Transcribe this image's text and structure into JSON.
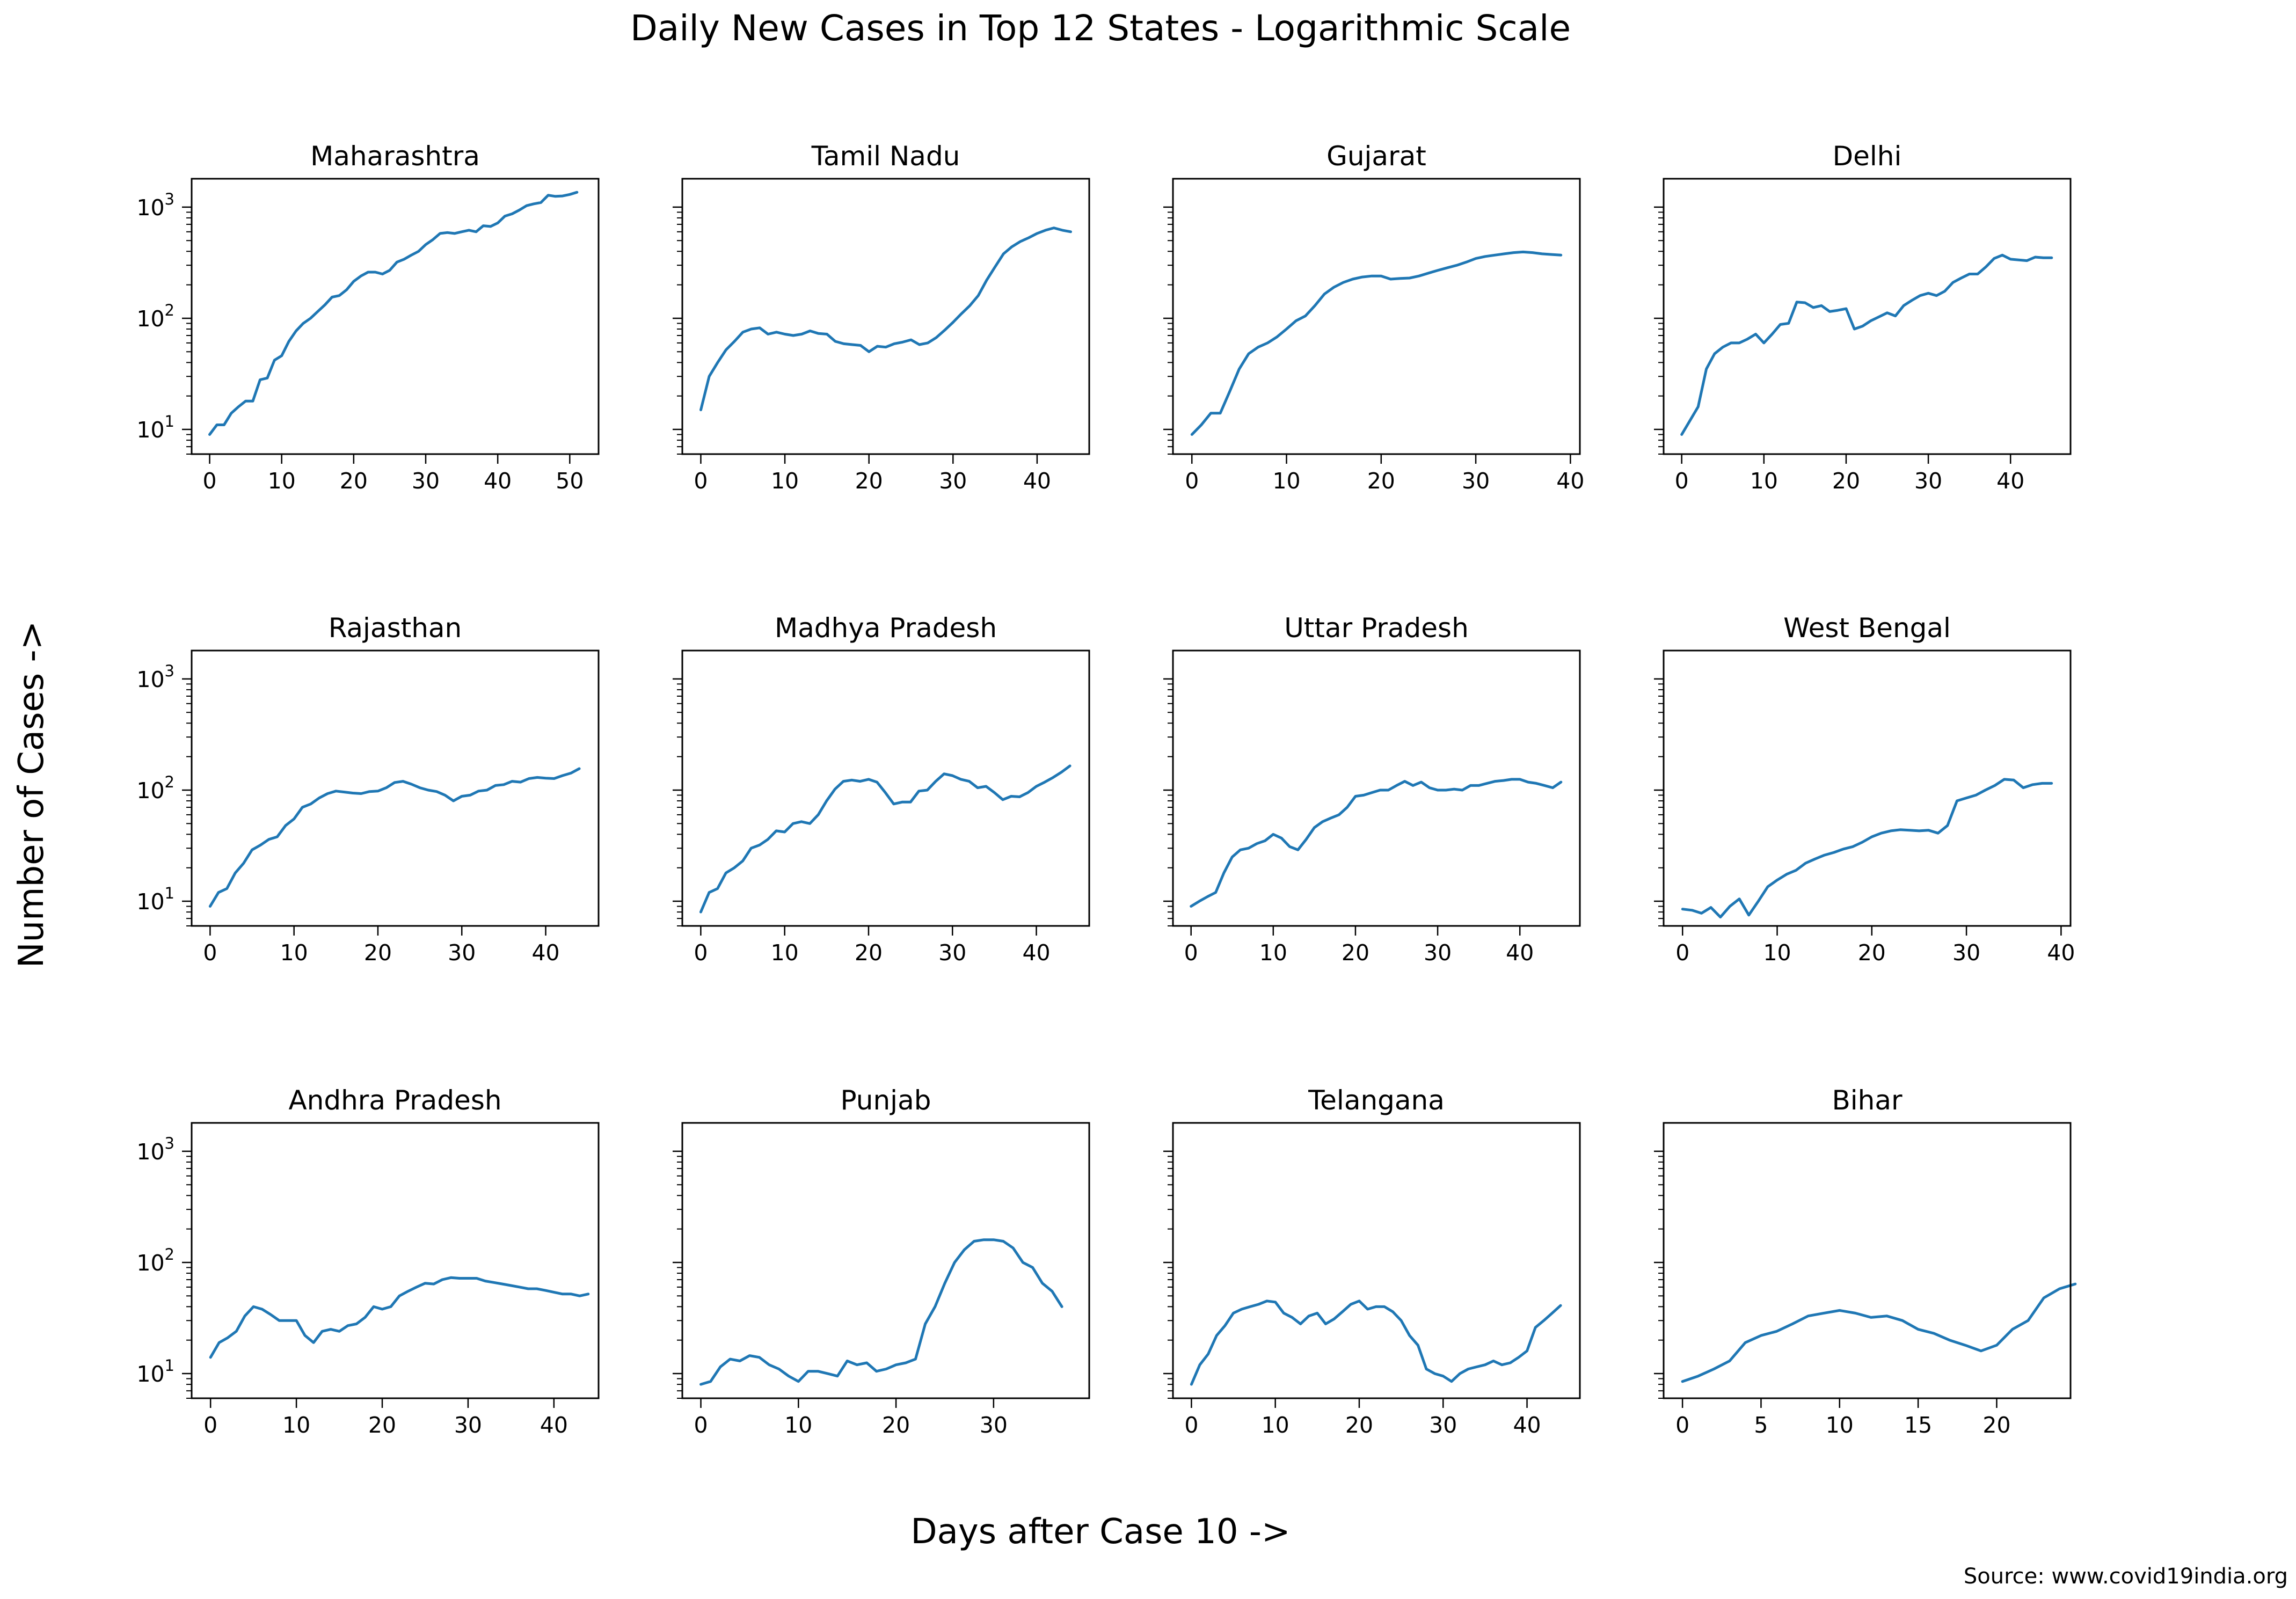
{
  "figure": {
    "title": "Daily New Cases in Top 12 States - Logarithmic Scale",
    "xlabel": "Days after Case 10 ->",
    "ylabel": "Number of Cases ->",
    "source": "Source: www.covid19india.org",
    "line_color": "#1f77b4"
  },
  "chart_data": [
    {
      "type": "line",
      "title": "Maharashtra",
      "yscale": "log",
      "ylim": [
        6,
        1800
      ],
      "xlim": [
        -2.5,
        54
      ],
      "grid": false,
      "xticks": [
        0,
        10,
        20,
        30,
        40,
        50
      ],
      "yticks": [
        {
          "value": 10,
          "base": "10",
          "exp": "1"
        },
        {
          "value": 100,
          "base": "10",
          "exp": "2"
        },
        {
          "value": 1000,
          "base": "10",
          "exp": "3"
        }
      ],
      "series": [
        {
          "values": [
            9,
            11,
            11,
            14,
            16,
            18,
            18,
            28,
            29,
            42,
            46,
            62,
            77,
            90,
            100,
            115,
            132,
            155,
            160,
            180,
            215,
            240,
            260,
            260,
            250,
            270,
            320,
            340,
            370,
            400,
            460,
            510,
            580,
            590,
            580,
            600,
            620,
            600,
            680,
            670,
            720,
            830,
            870,
            940,
            1030,
            1070,
            1100,
            1280,
            1250,
            1260,
            1300,
            1360
          ]
        }
      ]
    },
    {
      "type": "line",
      "title": "Tamil Nadu",
      "yscale": "log",
      "ylim": [
        6,
        1800
      ],
      "xlim": [
        -2.2,
        46.2
      ],
      "grid": false,
      "xticks": [
        0,
        10,
        20,
        30,
        40
      ],
      "yticks": [
        {
          "value": 10,
          "base": "10",
          "exp": "1"
        },
        {
          "value": 100,
          "base": "10",
          "exp": "2"
        },
        {
          "value": 1000,
          "base": "10",
          "exp": "3"
        }
      ],
      "series": [
        {
          "values": [
            15,
            30,
            40,
            52,
            62,
            75,
            80,
            82,
            72,
            75,
            72,
            70,
            72,
            77,
            73,
            72,
            62,
            59,
            58,
            57,
            50,
            56,
            55,
            59,
            61,
            64,
            58,
            60,
            67,
            78,
            92,
            110,
            130,
            160,
            220,
            290,
            380,
            440,
            490,
            530,
            580,
            620,
            650,
            620,
            600
          ]
        }
      ]
    },
    {
      "type": "line",
      "title": "Gujarat",
      "yscale": "log",
      "ylim": [
        6,
        1800
      ],
      "xlim": [
        -2,
        41
      ],
      "grid": false,
      "xticks": [
        0,
        10,
        20,
        30,
        40
      ],
      "yticks": [
        {
          "value": 10,
          "base": "10",
          "exp": "1"
        },
        {
          "value": 100,
          "base": "10",
          "exp": "2"
        },
        {
          "value": 1000,
          "base": "10",
          "exp": "3"
        }
      ],
      "series": [
        {
          "values": [
            9,
            11,
            14,
            14,
            22,
            35,
            48,
            55,
            60,
            68,
            80,
            95,
            105,
            130,
            165,
            190,
            210,
            225,
            235,
            240,
            240,
            225,
            228,
            230,
            240,
            255,
            270,
            285,
            300,
            320,
            345,
            360,
            370,
            380,
            390,
            395,
            390,
            380,
            375,
            370
          ]
        }
      ]
    },
    {
      "type": "line",
      "title": "Delhi",
      "yscale": "log",
      "ylim": [
        6,
        1800
      ],
      "xlim": [
        -2.2,
        47.3
      ],
      "grid": false,
      "xticks": [
        0,
        10,
        20,
        30,
        40
      ],
      "yticks": [
        {
          "value": 10,
          "base": "10",
          "exp": "1"
        },
        {
          "value": 100,
          "base": "10",
          "exp": "2"
        },
        {
          "value": 1000,
          "base": "10",
          "exp": "3"
        }
      ],
      "series": [
        {
          "values": [
            9,
            12,
            16,
            35,
            48,
            55,
            60,
            60,
            65,
            72,
            60,
            72,
            88,
            90,
            140,
            138,
            125,
            130,
            115,
            118,
            122,
            80,
            85,
            95,
            103,
            112,
            105,
            130,
            145,
            160,
            168,
            160,
            175,
            210,
            230,
            250,
            250,
            290,
            345,
            370,
            340,
            335,
            330,
            355,
            350,
            350
          ]
        }
      ]
    },
    {
      "type": "line",
      "title": "Rajasthan",
      "yscale": "log",
      "ylim": [
        6,
        1800
      ],
      "xlim": [
        -2.2,
        46.3
      ],
      "grid": false,
      "xticks": [
        0,
        10,
        20,
        30,
        40
      ],
      "yticks": [
        {
          "value": 10,
          "base": "10",
          "exp": "1"
        },
        {
          "value": 100,
          "base": "10",
          "exp": "2"
        },
        {
          "value": 1000,
          "base": "10",
          "exp": "3"
        }
      ],
      "series": [
        {
          "values": [
            9,
            12,
            13,
            18,
            22,
            29,
            32,
            36,
            38,
            48,
            55,
            70,
            75,
            85,
            93,
            98,
            96,
            94,
            93,
            97,
            98,
            105,
            117,
            120,
            113,
            105,
            100,
            97,
            90,
            80,
            88,
            90,
            98,
            100,
            110,
            112,
            120,
            118,
            127,
            130,
            128,
            127,
            135,
            142,
            156
          ]
        }
      ]
    },
    {
      "type": "line",
      "title": "Madhya Pradesh",
      "yscale": "log",
      "ylim": [
        6,
        1800
      ],
      "xlim": [
        -2.2,
        46.3
      ],
      "grid": false,
      "xticks": [
        0,
        10,
        20,
        30,
        40
      ],
      "yticks": [
        {
          "value": 10,
          "base": "10",
          "exp": "1"
        },
        {
          "value": 100,
          "base": "10",
          "exp": "2"
        },
        {
          "value": 1000,
          "base": "10",
          "exp": "3"
        }
      ],
      "series": [
        {
          "values": [
            8,
            12,
            13,
            18,
            20,
            23,
            30,
            32,
            36,
            43,
            42,
            50,
            52,
            50,
            60,
            80,
            102,
            120,
            123,
            120,
            125,
            118,
            95,
            75,
            78,
            78,
            98,
            100,
            120,
            140,
            135,
            125,
            120,
            105,
            108,
            95,
            82,
            88,
            87,
            95,
            108,
            118,
            130,
            145,
            165
          ]
        }
      ]
    },
    {
      "type": "line",
      "title": "Uttar Pradesh",
      "yscale": "log",
      "ylim": [
        6,
        1800
      ],
      "xlim": [
        -2.2,
        47.3
      ],
      "grid": false,
      "xticks": [
        0,
        10,
        20,
        30,
        40
      ],
      "yticks": [
        {
          "value": 10,
          "base": "10",
          "exp": "1"
        },
        {
          "value": 100,
          "base": "10",
          "exp": "2"
        },
        {
          "value": 1000,
          "base": "10",
          "exp": "3"
        }
      ],
      "series": [
        {
          "values": [
            9,
            10,
            11,
            12,
            18,
            25,
            29,
            30,
            33,
            35,
            40,
            37,
            31,
            29,
            36,
            46,
            52,
            56,
            60,
            70,
            88,
            90,
            95,
            100,
            100,
            110,
            120,
            110,
            118,
            105,
            100,
            100,
            102,
            100,
            110,
            110,
            115,
            120,
            122,
            125,
            125,
            118,
            115,
            110,
            105,
            118
          ]
        }
      ]
    },
    {
      "type": "line",
      "title": "West Bengal",
      "yscale": "log",
      "ylim": [
        6,
        1800
      ],
      "xlim": [
        -2,
        41
      ],
      "grid": false,
      "xticks": [
        0,
        10,
        20,
        30,
        40
      ],
      "yticks": [
        {
          "value": 10,
          "base": "10",
          "exp": "1"
        },
        {
          "value": 100,
          "base": "10",
          "exp": "2"
        },
        {
          "value": 1000,
          "base": "10",
          "exp": "3"
        }
      ],
      "series": [
        {
          "values": [
            8.5,
            8.3,
            7.8,
            8.8,
            7.2,
            9,
            10.5,
            7.5,
            10,
            13.5,
            15.5,
            17.5,
            19,
            22,
            24,
            26,
            27.5,
            29.5,
            31,
            34,
            38,
            41,
            43,
            44,
            43.5,
            43,
            43.5,
            41,
            48,
            80,
            85,
            90,
            100,
            110,
            125,
            123,
            105,
            112,
            115,
            115
          ]
        }
      ]
    },
    {
      "type": "line",
      "title": "Andhra Pradesh",
      "yscale": "log",
      "ylim": [
        6,
        1800
      ],
      "xlim": [
        -2.2,
        45.2
      ],
      "grid": false,
      "xticks": [
        0,
        10,
        20,
        30,
        40
      ],
      "yticks": [
        {
          "value": 10,
          "base": "10",
          "exp": "1"
        },
        {
          "value": 100,
          "base": "10",
          "exp": "2"
        },
        {
          "value": 1000,
          "base": "10",
          "exp": "3"
        }
      ],
      "series": [
        {
          "values": [
            14,
            19,
            21,
            24,
            33,
            40,
            38,
            34,
            30,
            30,
            30,
            22,
            19,
            24,
            25,
            24,
            27,
            28,
            32,
            40,
            38,
            40,
            50,
            55,
            60,
            65,
            64,
            70,
            73,
            72,
            72,
            72,
            68,
            66,
            64,
            62,
            60,
            58,
            58,
            56,
            54,
            52,
            52,
            50,
            52
          ]
        }
      ]
    },
    {
      "type": "line",
      "title": "Punjab",
      "yscale": "log",
      "ylim": [
        6,
        1800
      ],
      "xlim": [
        -1.9,
        39.8
      ],
      "grid": false,
      "xticks": [
        0,
        10,
        20,
        30
      ],
      "yticks": [
        {
          "value": 10,
          "base": "10",
          "exp": "1"
        },
        {
          "value": 100,
          "base": "10",
          "exp": "2"
        },
        {
          "value": 1000,
          "base": "10",
          "exp": "3"
        }
      ],
      "series": [
        {
          "values": [
            8,
            8.5,
            11.5,
            13.5,
            13,
            14.5,
            14,
            12,
            11,
            9.5,
            8.5,
            10.5,
            10.5,
            10,
            9.5,
            13,
            12,
            12.5,
            10.5,
            11,
            12,
            12.5,
            13.5,
            28,
            40,
            65,
            100,
            130,
            155,
            160,
            160,
            155,
            135,
            100,
            90,
            65,
            55,
            40
          ]
        }
      ]
    },
    {
      "type": "line",
      "title": "Telangana",
      "yscale": "log",
      "ylim": [
        6,
        1800
      ],
      "xlim": [
        -2.2,
        46.3
      ],
      "grid": false,
      "xticks": [
        0,
        10,
        20,
        30,
        40
      ],
      "yticks": [
        {
          "value": 10,
          "base": "10",
          "exp": "1"
        },
        {
          "value": 100,
          "base": "10",
          "exp": "2"
        },
        {
          "value": 1000,
          "base": "10",
          "exp": "3"
        }
      ],
      "series": [
        {
          "values": [
            8,
            12,
            15,
            22,
            27,
            35,
            38,
            40,
            42,
            45,
            44,
            35,
            32,
            28,
            33,
            35,
            28,
            31,
            36,
            42,
            45,
            38,
            40,
            40,
            36,
            30,
            22,
            18,
            11,
            10,
            9.5,
            8.5,
            10,
            11,
            11.5,
            12,
            13,
            12,
            12.5,
            14,
            16,
            26,
            30,
            35,
            41
          ]
        }
      ]
    },
    {
      "type": "line",
      "title": "Bihar",
      "yscale": "log",
      "ylim": [
        6,
        1800
      ],
      "xlim": [
        -1.2,
        24.7
      ],
      "grid": false,
      "xticks": [
        0,
        5,
        10,
        15,
        20
      ],
      "yticks": [
        {
          "value": 10,
          "base": "10",
          "exp": "1"
        },
        {
          "value": 100,
          "base": "10",
          "exp": "2"
        },
        {
          "value": 1000,
          "base": "10",
          "exp": "3"
        }
      ],
      "series": [
        {
          "values": [
            8.5,
            9.5,
            11,
            13,
            19,
            22,
            24,
            28,
            33,
            35,
            37,
            35,
            32,
            33,
            30,
            25,
            23,
            20,
            18,
            16,
            18,
            25,
            30,
            48,
            58,
            64
          ]
        }
      ]
    }
  ]
}
